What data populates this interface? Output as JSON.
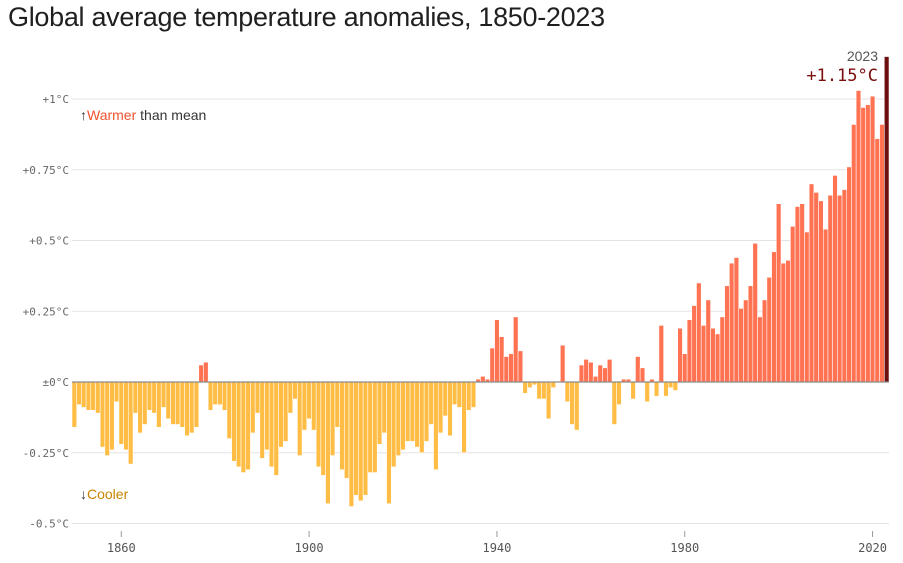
{
  "chart_data": {
    "type": "bar",
    "title": "Global average temperature anomalies, 1850-2023",
    "xlabel": "",
    "ylabel": "",
    "x_start": 1850,
    "x_end": 2023,
    "ylim": [
      -0.5,
      1.15
    ],
    "yticks": [
      {
        "value": 1,
        "label": "+1°C"
      },
      {
        "value": 0.75,
        "label": "+0.75°C"
      },
      {
        "value": 0.5,
        "label": "+0.5°C"
      },
      {
        "value": 0.25,
        "label": "+0.25°C"
      },
      {
        "value": 0,
        "label": "±0°C"
      },
      {
        "value": -0.25,
        "label": "-0.25°C"
      },
      {
        "value": -0.5,
        "label": "-0.5°C"
      }
    ],
    "xticks": [
      {
        "value": 1860,
        "label": "1860"
      },
      {
        "value": 1900,
        "label": "1900"
      },
      {
        "value": 1940,
        "label": "1940"
      },
      {
        "value": 1980,
        "label": "1980"
      },
      {
        "value": 2020,
        "label": "2020"
      }
    ],
    "values": [
      -0.16,
      -0.08,
      -0.09,
      -0.1,
      -0.1,
      -0.11,
      -0.23,
      -0.26,
      -0.24,
      -0.07,
      -0.22,
      -0.24,
      -0.29,
      -0.11,
      -0.18,
      -0.15,
      -0.1,
      -0.11,
      -0.16,
      -0.09,
      -0.13,
      -0.15,
      -0.15,
      -0.16,
      -0.19,
      -0.18,
      -0.16,
      0.06,
      0.07,
      -0.1,
      -0.08,
      -0.08,
      -0.1,
      -0.2,
      -0.28,
      -0.3,
      -0.32,
      -0.31,
      -0.18,
      -0.11,
      -0.27,
      -0.24,
      -0.3,
      -0.33,
      -0.23,
      -0.21,
      -0.11,
      -0.06,
      -0.26,
      -0.17,
      -0.13,
      -0.17,
      -0.3,
      -0.33,
      -0.43,
      -0.26,
      -0.16,
      -0.31,
      -0.34,
      -0.44,
      -0.4,
      -0.42,
      -0.4,
      -0.32,
      -0.32,
      -0.22,
      -0.18,
      -0.43,
      -0.3,
      -0.26,
      -0.24,
      -0.21,
      -0.21,
      -0.23,
      -0.25,
      -0.21,
      -0.15,
      -0.31,
      -0.18,
      -0.12,
      -0.19,
      -0.08,
      -0.09,
      -0.25,
      -0.1,
      -0.09,
      0.01,
      0.02,
      0.01,
      0.12,
      0.22,
      0.16,
      0.09,
      0.1,
      0.23,
      0.11,
      -0.04,
      -0.02,
      -0.01,
      -0.06,
      -0.06,
      -0.13,
      -0.02,
      0.0,
      0.13,
      -0.07,
      -0.15,
      -0.17,
      0.06,
      0.08,
      0.07,
      0.02,
      0.06,
      0.05,
      0.08,
      -0.15,
      -0.08,
      0.01,
      0.01,
      -0.06,
      0.09,
      0.05,
      -0.07,
      0.01,
      -0.05,
      0.2,
      -0.05,
      -0.02,
      -0.03,
      0.19,
      0.1,
      0.22,
      0.27,
      0.35,
      0.2,
      0.29,
      0.19,
      0.17,
      0.23,
      0.34,
      0.42,
      0.44,
      0.26,
      0.29,
      0.34,
      0.49,
      0.23,
      0.29,
      0.37,
      0.46,
      0.63,
      0.42,
      0.43,
      0.55,
      0.62,
      0.63,
      0.53,
      0.7,
      0.67,
      0.64,
      0.54,
      0.66,
      0.73,
      0.66,
      0.68,
      0.76,
      0.91,
      1.03,
      0.97,
      0.98,
      1.01,
      0.86,
      0.91,
      1.15
    ],
    "legend": {
      "warmer_arrow": "↑",
      "warmer_label": "Warmer",
      "warmer_suffix": " than mean",
      "cooler_arrow": "↓",
      "cooler_label": "Cooler"
    },
    "annotation": {
      "year": "2023",
      "value_label": "+1.15°C"
    },
    "colors": {
      "warm": "#ff7252",
      "warm_stroke": "#f2603e",
      "cool": "#ffbd45",
      "cool_stroke": "#f5ad2a",
      "highlight": "#6b0f0f",
      "warm_text": "#f0532d",
      "cool_text": "#c98500",
      "grid": "#e3e3e3",
      "axis": "#8c8c8c",
      "annotation": "#7a0d0d"
    }
  }
}
